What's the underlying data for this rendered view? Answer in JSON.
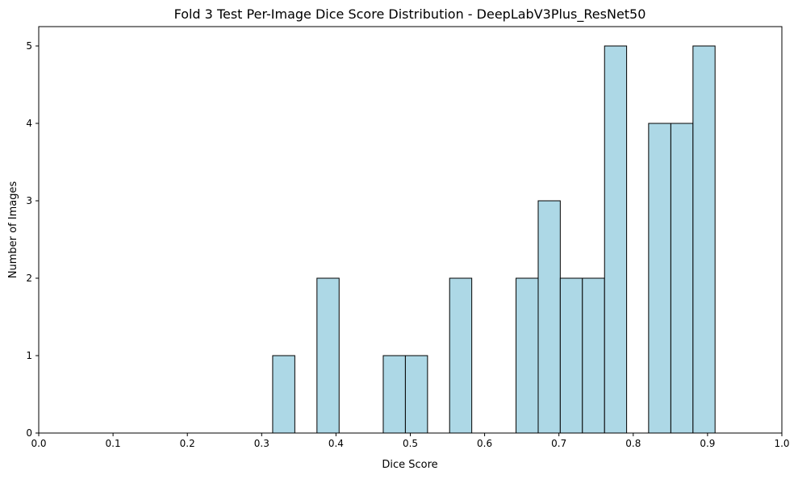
{
  "chart_data": {
    "type": "bar",
    "title": "Fold 3 Test Per-Image Dice Score Distribution - DeepLabV3Plus_ResNet50",
    "xlabel": "Dice Score",
    "ylabel": "Number of Images",
    "xlim": [
      0.0,
      1.0
    ],
    "ylim": [
      0,
      5.25
    ],
    "xticks": [
      "0.0",
      "0.1",
      "0.2",
      "0.3",
      "0.4",
      "0.5",
      "0.6",
      "0.7",
      "0.8",
      "0.9",
      "1.0"
    ],
    "yticks": [
      "0",
      "1",
      "2",
      "3",
      "4",
      "5"
    ],
    "bins": [
      {
        "x0": 0.3148,
        "x1": 0.3446,
        "count": 1
      },
      {
        "x0": 0.3744,
        "x1": 0.4042,
        "count": 2
      },
      {
        "x0": 0.4636,
        "x1": 0.4934,
        "count": 1
      },
      {
        "x0": 0.4934,
        "x1": 0.5232,
        "count": 1
      },
      {
        "x0": 0.5529,
        "x1": 0.5827,
        "count": 2
      },
      {
        "x0": 0.6423,
        "x1": 0.6721,
        "count": 2
      },
      {
        "x0": 0.6721,
        "x1": 0.7018,
        "count": 3
      },
      {
        "x0": 0.7018,
        "x1": 0.7316,
        "count": 2
      },
      {
        "x0": 0.7316,
        "x1": 0.7614,
        "count": 2
      },
      {
        "x0": 0.7614,
        "x1": 0.7911,
        "count": 5
      },
      {
        "x0": 0.8207,
        "x1": 0.8506,
        "count": 4
      },
      {
        "x0": 0.8506,
        "x1": 0.8804,
        "count": 4
      },
      {
        "x0": 0.8804,
        "x1": 0.9101,
        "count": 5
      }
    ],
    "bar_color": "#add8e6",
    "edge_color": "#000000",
    "grid": false,
    "legend": "none"
  }
}
